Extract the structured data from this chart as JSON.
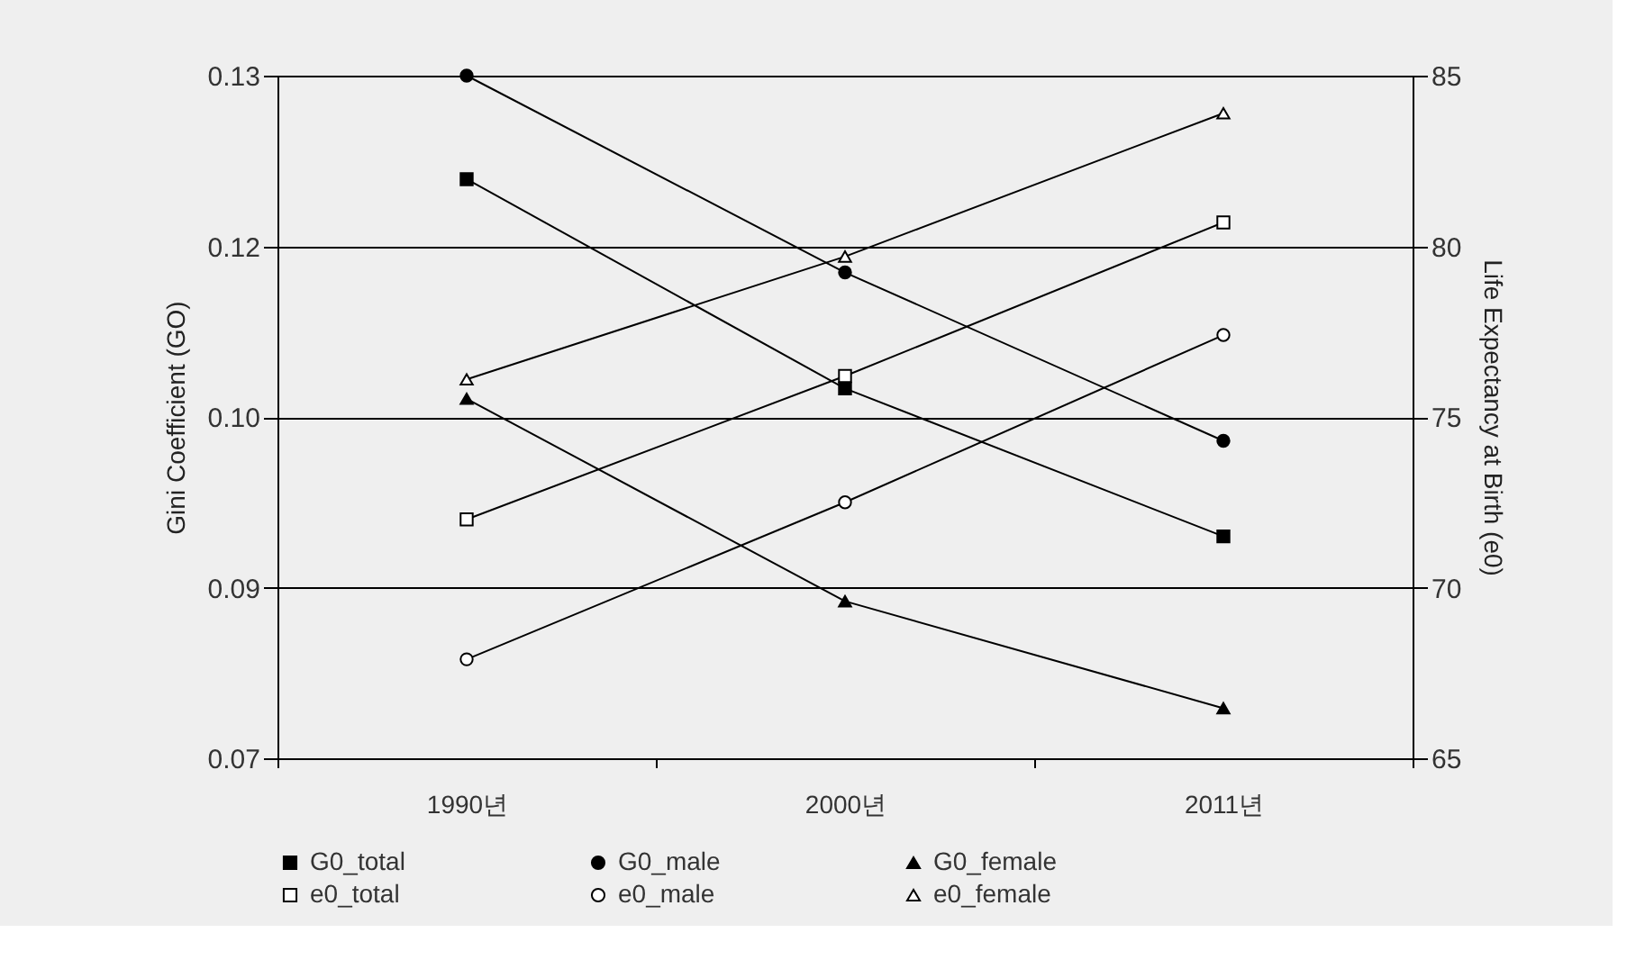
{
  "chart_data": {
    "type": "line",
    "categories": [
      "1990년",
      "2000년",
      "2011년"
    ],
    "ylabel": "Gini Coefficient (GO)",
    "y2label": "Life Expectancy at Birth (e0)",
    "ylim": [
      0.07,
      0.13
    ],
    "yticks": [
      0.13,
      {
        "value": 0.115,
        "label": "0.12"
      },
      {
        "value": 0.1,
        "label": "0.10"
      },
      {
        "value": 0.085,
        "label": "0.09"
      },
      0.07
    ],
    "y2lim": [
      65,
      85
    ],
    "y2ticks": [
      65,
      70,
      75,
      80,
      85
    ],
    "grid": "y",
    "legend": "bottom",
    "line_style": "solid",
    "series": [
      {
        "name": "G0_total",
        "color": "#000000",
        "marker": "square",
        "values": [
          0.1209,
          0.1025,
          0.0895
        ]
      },
      {
        "name": "G0_male",
        "color": "#000000",
        "marker": "circle",
        "values": [
          0.13,
          0.1127,
          0.0979
        ]
      },
      {
        "name": "G0_female",
        "color": "#000000",
        "marker": "triangle",
        "values": [
          0.1016,
          0.0838,
          0.0744
        ]
      },
      {
        "name": "e0_total",
        "color": "#000000",
        "marker": "square",
        "axis": "y2",
        "values": [
          72.0,
          76.2,
          80.7
        ]
      },
      {
        "name": "e0_male",
        "color": "#000000",
        "marker": "circle",
        "axis": "y2",
        "values": [
          67.9,
          72.5,
          77.4
        ]
      },
      {
        "name": "e0_female",
        "color": "#000000",
        "marker": "triangle",
        "axis": "y2",
        "values": [
          76.1,
          79.7,
          83.9
        ]
      }
    ]
  }
}
